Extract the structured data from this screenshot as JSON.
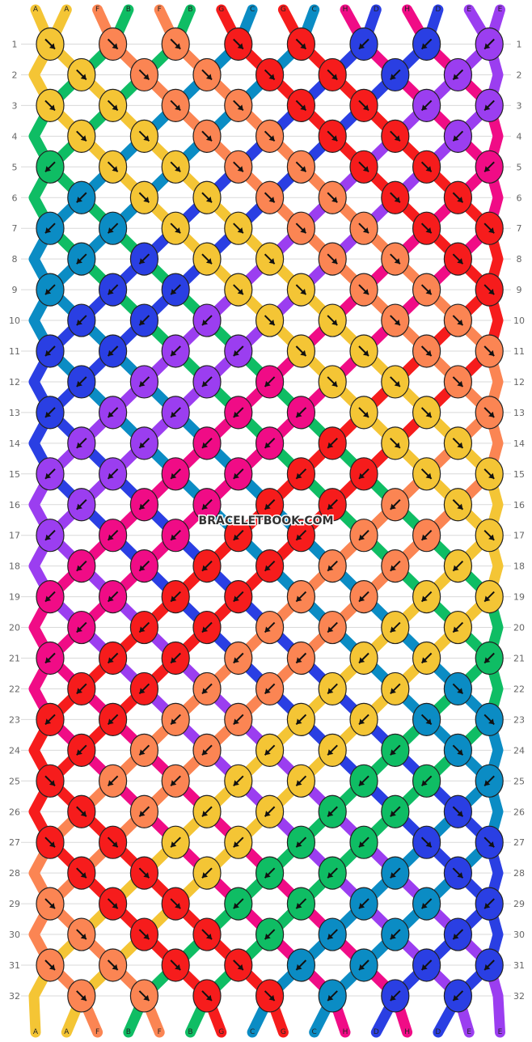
{
  "watermark": "BRACELETBOOK.COM",
  "strand_labels": [
    "A",
    "A",
    "F",
    "B",
    "F",
    "B",
    "G",
    "C",
    "G",
    "C",
    "H",
    "D",
    "H",
    "D",
    "E",
    "E"
  ],
  "row_count": 32,
  "colors": {
    "A": "#f4c535",
    "B": "#0fbd64",
    "C": "#0b8cc4",
    "D": "#2a3fe3",
    "E": "#9b3ef0",
    "F": "#fb8553",
    "G": "#f61c1c",
    "H": "#f00c86"
  },
  "arrow_color": "#111111",
  "knot_stroke": "#222222",
  "grid_color": "#d9d9d9",
  "row_labels": [
    "1",
    "2",
    "3",
    "4",
    "5",
    "6",
    "7",
    "8",
    "9",
    "10",
    "11",
    "12",
    "13",
    "14",
    "15",
    "16",
    "17",
    "18",
    "19",
    "20",
    "21",
    "22",
    "23",
    "24",
    "25",
    "26",
    "27",
    "28",
    "29",
    "30",
    "31",
    "32"
  ]
}
